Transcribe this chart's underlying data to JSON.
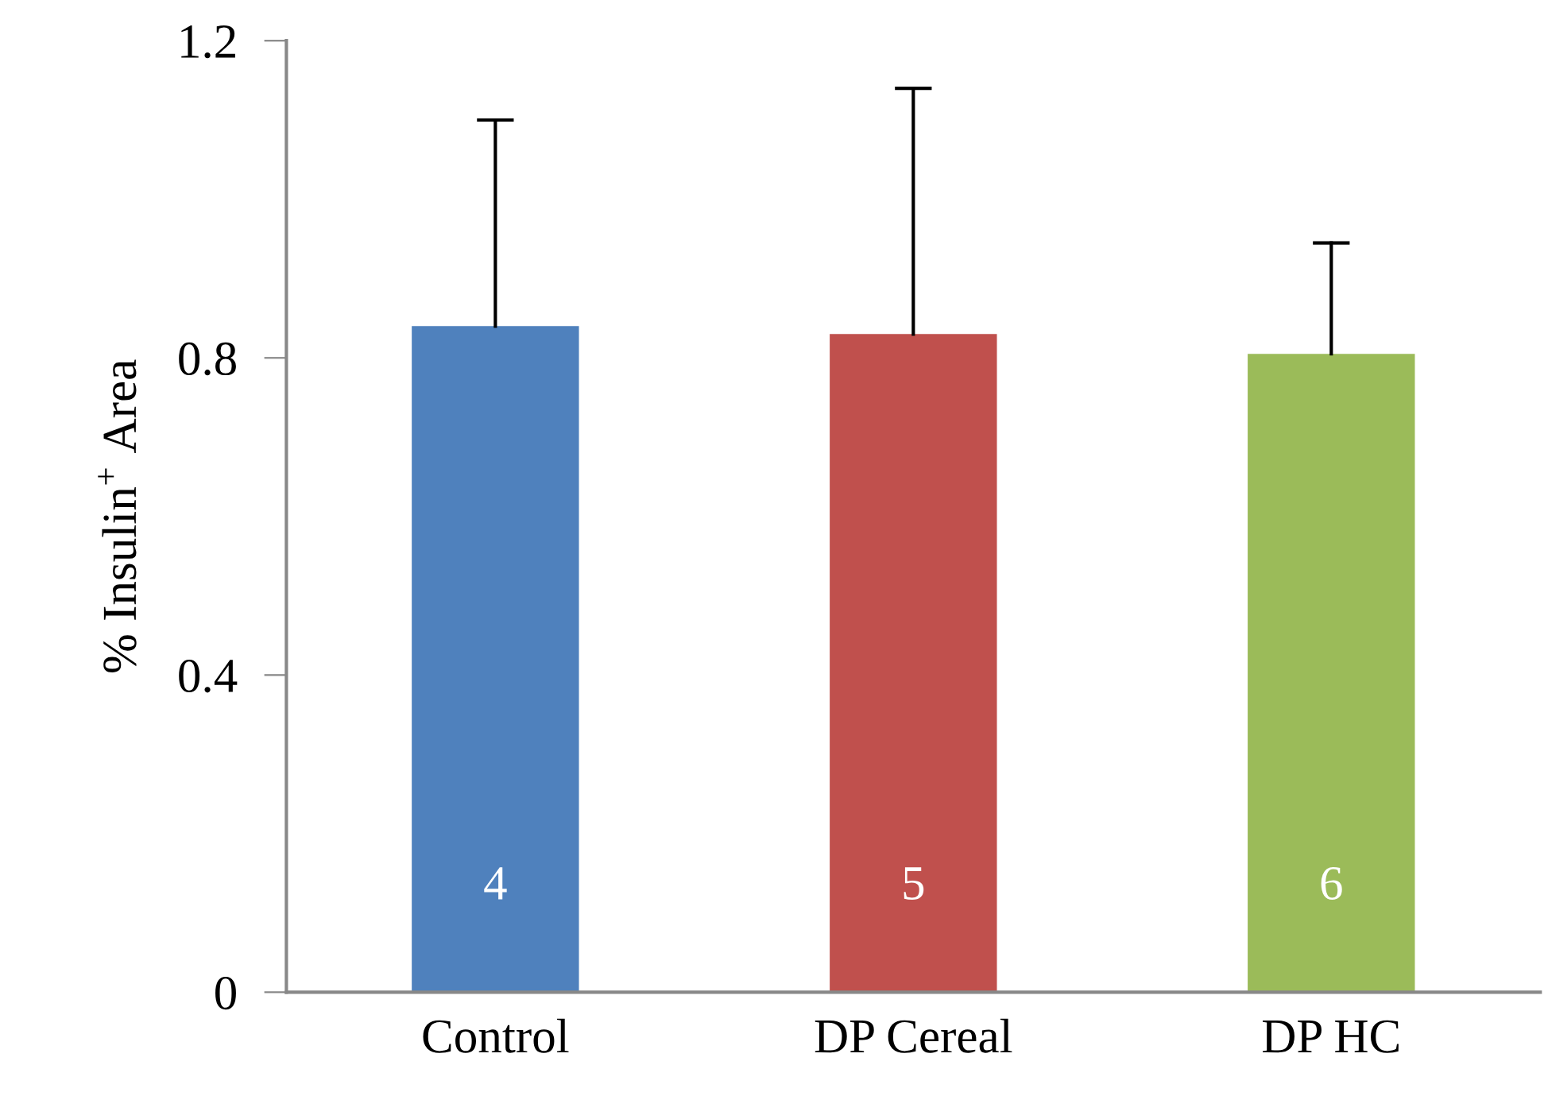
{
  "chart_data": {
    "type": "bar",
    "ylabel": "% Insulin$^{+}$ Area",
    "categories": [
      "Control",
      "DP Cereal",
      "DP HC"
    ],
    "values": [
      0.84,
      0.83,
      0.805
    ],
    "colors": [
      "#4f81bd",
      "#c0504d",
      "#9bbb59"
    ],
    "errors": [
      [
        0.84,
        1.1
      ],
      [
        0.83,
        1.14
      ],
      [
        0.805,
        0.945
      ]
    ],
    "ylim": [
      0,
      1.2
    ],
    "yticks": [
      0,
      0.4,
      0.8,
      1.2
    ],
    "annotations": [
      "4",
      "5",
      "6"
    ],
    "grid": false
  }
}
